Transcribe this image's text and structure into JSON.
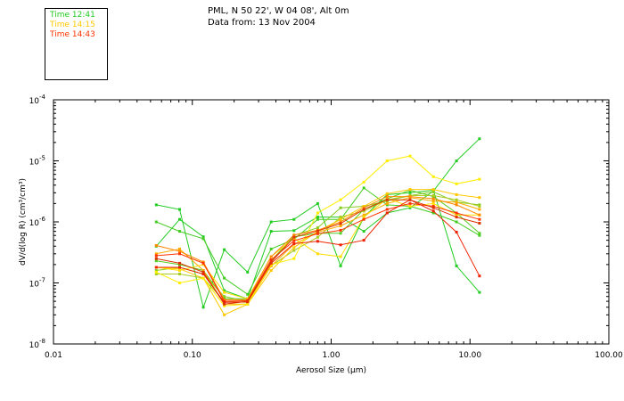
{
  "header": {
    "location": "PML, N 50 22', W 04 08', Alt 0m",
    "date": "Data from: 13 Nov 2004"
  },
  "chart_data": {
    "type": "line",
    "title": "",
    "xlabel": "Aerosol Size (μm)",
    "ylabel": "dV/d(log R) (cm³/cm³)",
    "x_scale": "log",
    "y_scale": "log",
    "xlim": [
      0.01,
      100
    ],
    "ylim": [
      1e-08,
      0.0001
    ],
    "grid": false,
    "legend": "top-left",
    "x_ticks": [
      {
        "value": 0.01,
        "label": "0.01"
      },
      {
        "value": 0.1,
        "label": "0.10"
      },
      {
        "value": 1,
        "label": "1.00"
      },
      {
        "value": 10,
        "label": "10.00"
      },
      {
        "value": 100,
        "label": "100.00"
      }
    ],
    "y_ticks": [
      {
        "value": 1e-08,
        "mant": "10",
        "exp": "-8"
      },
      {
        "value": 1e-07,
        "mant": "10",
        "exp": "-7"
      },
      {
        "value": 1e-06,
        "mant": "10",
        "exp": "-6"
      },
      {
        "value": 1e-05,
        "mant": "10",
        "exp": "-5"
      },
      {
        "value": 0.0001,
        "mant": "10",
        "exp": "-4"
      }
    ],
    "x": [
      0.055,
      0.081,
      0.12,
      0.17,
      0.25,
      0.37,
      0.54,
      0.8,
      1.17,
      1.72,
      2.53,
      3.7,
      5.45,
      7.99,
      11.7
    ],
    "series": [
      {
        "name": "Time 12:41",
        "color": "#22cc22",
        "values": [
          1.9e-06,
          1.6e-06,
          4e-08,
          3.5e-07,
          1.5e-07,
          1e-06,
          1.1e-06,
          2e-06,
          1.9e-07,
          1.2e-06,
          2.8e-06,
          3e-06,
          3.3e-06,
          1.9e-07,
          7e-08
        ]
      },
      {
        "name": "",
        "color": "#22cc22",
        "values": [
          4e-07,
          1.1e-06,
          5.7e-07,
          7.5e-08,
          5.5e-08,
          7e-07,
          7.2e-07,
          1.2e-06,
          1.2e-06,
          7e-07,
          1.4e-06,
          1.7e-06,
          3.2e-06,
          1e-05,
          2.3e-05
        ]
      },
      {
        "name": "",
        "color": "#55cc22",
        "values": [
          2.3e-07,
          2e-07,
          1.6e-07,
          5.5e-08,
          5.5e-08,
          2.2e-07,
          5.7e-07,
          6.5e-07,
          6.5e-07,
          1.6e-06,
          2.4e-06,
          3.3e-06,
          2.6e-06,
          1.4e-06,
          6.5e-07
        ]
      },
      {
        "name": "",
        "color": "#44cc22",
        "values": [
          1e-06,
          7e-07,
          5.3e-07,
          1.2e-07,
          6.5e-08,
          3.6e-07,
          5.2e-07,
          1.1e-06,
          1.1e-06,
          3.6e-06,
          1.9e-06,
          1.8e-06,
          1.4e-06,
          1e-06,
          6e-07
        ]
      },
      {
        "name": "",
        "color": "#88cc22",
        "values": [
          1.6e-07,
          1.8e-07,
          1.4e-07,
          6e-08,
          5e-08,
          2.3e-07,
          6e-07,
          8e-07,
          1.7e-06,
          1.8e-06,
          2.2e-06,
          2.7e-06,
          3.1e-06,
          2.1e-06,
          1.9e-06
        ]
      },
      {
        "name": "",
        "color": "#aacc22",
        "values": [
          1.4e-07,
          1.4e-07,
          1.2e-07,
          5e-08,
          4.8e-08,
          1.9e-07,
          3.4e-07,
          5.6e-07,
          1.2e-06,
          1.5e-06,
          2.3e-06,
          2.7e-06,
          2.7e-06,
          2.3e-06,
          1.8e-06
        ]
      },
      {
        "name": "Time 14:15",
        "color": "#ffc800",
        "values": [
          1.8e-07,
          1.7e-07,
          1.2e-07,
          3e-08,
          4.5e-08,
          1.6e-07,
          3.8e-07,
          7e-07,
          1.1e-06,
          1.8e-06,
          2.9e-06,
          3.4e-06,
          3.4e-06,
          2.8e-06,
          2.5e-06
        ]
      },
      {
        "name": "",
        "color": "#ffaa00",
        "values": [
          3e-07,
          3.6e-07,
          1.6e-07,
          4.5e-08,
          4.5e-08,
          1.9e-07,
          4.3e-07,
          6.8e-07,
          8.6e-07,
          1.3e-06,
          2e-06,
          2.5e-06,
          2.2e-06,
          2.1e-06,
          1.6e-06
        ]
      },
      {
        "name": "",
        "color": "#ffee00",
        "values": [
          1.5e-07,
          1e-07,
          1.2e-07,
          4.2e-08,
          4.5e-08,
          2e-07,
          2.5e-07,
          1.4e-06,
          2.3e-06,
          4.5e-06,
          1e-05,
          1.2e-05,
          5.5e-06,
          4.2e-06,
          5e-06
        ]
      },
      {
        "name": "",
        "color": "#ffdd00",
        "values": [
          1.8e-07,
          1.6e-07,
          2e-07,
          7e-08,
          5.5e-08,
          2.7e-07,
          5.4e-07,
          3e-07,
          2.7e-07,
          1.2e-06,
          2.4e-06,
          1.8e-06,
          2e-06,
          1.3e-06,
          1.3e-06
        ]
      },
      {
        "name": "",
        "color": "#ff8800",
        "values": [
          4.1e-07,
          3.3e-07,
          2.2e-07,
          5.3e-08,
          5.3e-08,
          2.7e-07,
          6.1e-07,
          7.3e-07,
          1e-06,
          1.7e-06,
          2.6e-06,
          2.6e-06,
          2.4e-06,
          1.9e-06,
          1.3e-06
        ]
      },
      {
        "name": "Time 14:43",
        "color": "#ff3300",
        "values": [
          2.8e-07,
          3e-07,
          2.1e-07,
          5e-08,
          5.1e-08,
          2.4e-07,
          4.9e-07,
          6.4e-07,
          7.3e-07,
          1.1e-06,
          1.6e-06,
          2e-06,
          1.8e-06,
          1.4e-06,
          1.1e-06
        ]
      },
      {
        "name": "",
        "color": "#ee2200",
        "values": [
          1.8e-07,
          1.8e-07,
          1.4e-07,
          4.8e-08,
          4.9e-08,
          2.1e-07,
          4.4e-07,
          4.8e-07,
          4.2e-07,
          5e-07,
          1.4e-06,
          2.3e-06,
          1.5e-06,
          6.8e-07,
          1.3e-07
        ]
      },
      {
        "name": "",
        "color": "#dd3300",
        "values": [
          2.5e-07,
          2.1e-07,
          1.5e-07,
          4.5e-08,
          5e-08,
          2.2e-07,
          5.6e-07,
          7.1e-07,
          9.4e-07,
          1.6e-06,
          2.3e-06,
          2.3e-06,
          1.7e-06,
          1.2e-06,
          9.5e-07
        ]
      }
    ]
  },
  "legend": [
    {
      "label": "Time 12:41",
      "color": "#22cc22"
    },
    {
      "label": "Time 14:15",
      "color": "#ffc800"
    },
    {
      "label": "Time 14:43",
      "color": "#ff3300"
    }
  ]
}
